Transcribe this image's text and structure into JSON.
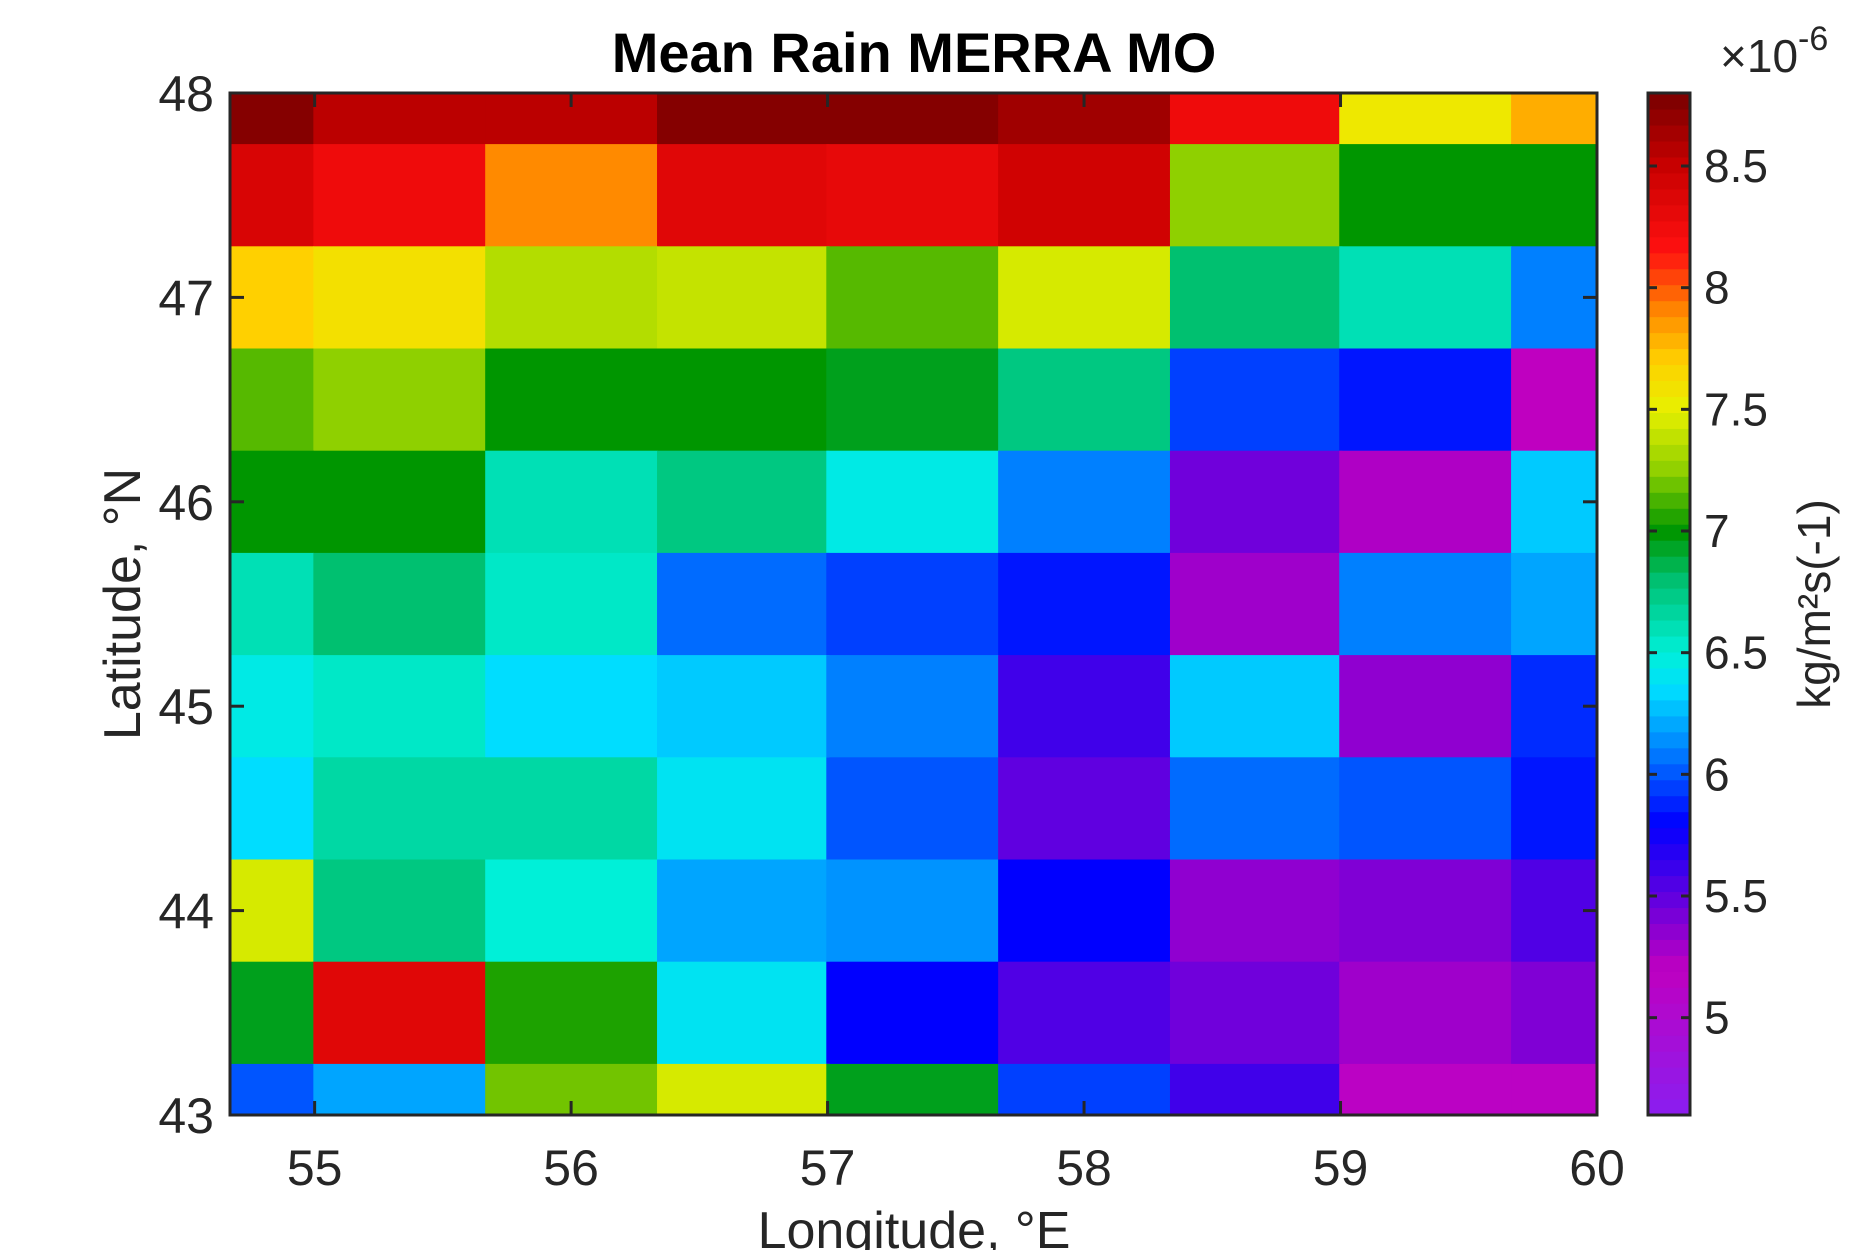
{
  "chart_data": {
    "type": "heatmap",
    "title": "Mean Rain MERRA MO",
    "xlabel": "Longitude, °E",
    "ylabel": "Latitude, °N",
    "x_ticks": [
      "55",
      "56",
      "57",
      "58",
      "59",
      "60"
    ],
    "y_ticks": [
      "43",
      "44",
      "45",
      "46",
      "47",
      "48"
    ],
    "xlim": [
      54.67,
      60
    ],
    "ylim": [
      43,
      48
    ],
    "x_centers": [
      54.83,
      55.33,
      56.0,
      56.67,
      57.33,
      58.0,
      58.67,
      59.33,
      59.83
    ],
    "x_widths": [
      0.33,
      0.67,
      0.67,
      0.67,
      0.67,
      0.67,
      0.67,
      0.67,
      0.33
    ],
    "y_centers": [
      47.875,
      47.5,
      47.0,
      46.5,
      46.0,
      45.5,
      45.0,
      44.5,
      44.0,
      43.5,
      43.125
    ],
    "y_heights": [
      0.25,
      0.5,
      0.5,
      0.5,
      0.5,
      0.5,
      0.5,
      0.5,
      0.5,
      0.5,
      0.25
    ],
    "values_note_unit": "1e-6 kg/m^2 s^-1",
    "values": [
      [
        8.75,
        8.55,
        8.55,
        8.75,
        8.75,
        8.65,
        8.25,
        7.55,
        7.8
      ],
      [
        8.4,
        8.25,
        7.9,
        8.35,
        8.3,
        8.45,
        7.25,
        7.0,
        7.0
      ],
      [
        7.7,
        7.6,
        7.35,
        7.4,
        7.15,
        7.45,
        6.8,
        6.6,
        6.1
      ],
      [
        7.15,
        7.25,
        7.0,
        7.0,
        6.95,
        6.75,
        5.95,
        5.85,
        5.2
      ],
      [
        7.0,
        7.0,
        6.6,
        6.75,
        6.45,
        6.1,
        5.45,
        5.25,
        6.3
      ],
      [
        6.6,
        6.8,
        6.55,
        6.05,
        5.95,
        5.85,
        5.3,
        6.1,
        6.2
      ],
      [
        6.45,
        6.55,
        6.35,
        6.3,
        6.1,
        5.6,
        6.3,
        5.35,
        5.9
      ],
      [
        6.35,
        6.65,
        6.65,
        6.4,
        6.0,
        5.5,
        6.05,
        6.0,
        5.85
      ],
      [
        7.45,
        6.75,
        6.5,
        6.2,
        6.15,
        5.8,
        5.35,
        5.4,
        5.55
      ],
      [
        6.95,
        8.35,
        7.05,
        6.4,
        5.8,
        5.55,
        5.45,
        5.3,
        5.4
      ],
      [
        6.0,
        6.2,
        7.2,
        7.45,
        6.95,
        5.95,
        5.6,
        5.15,
        5.15
      ]
    ],
    "clim": [
      4.6,
      8.8
    ],
    "colorbar": {
      "ticks": [
        "5",
        "5.5",
        "6",
        "6.5",
        "7",
        "7.5",
        "8",
        "8.5"
      ],
      "tick_values": [
        5,
        5.5,
        6,
        6.5,
        7,
        7.5,
        8,
        8.5
      ],
      "exponent_label": "×10",
      "exponent": "-6",
      "label": "kg/m²s(-1)"
    },
    "colormap": [
      {
        "v": 4.6,
        "c": "#8a1ef0"
      },
      {
        "v": 5.2,
        "c": "#bf00c0"
      },
      {
        "v": 5.5,
        "c": "#6000e0"
      },
      {
        "v": 5.8,
        "c": "#0000ff"
      },
      {
        "v": 6.1,
        "c": "#0080ff"
      },
      {
        "v": 6.35,
        "c": "#00ddff"
      },
      {
        "v": 6.5,
        "c": "#00f0d8"
      },
      {
        "v": 6.8,
        "c": "#00c070"
      },
      {
        "v": 7.0,
        "c": "#009600"
      },
      {
        "v": 7.25,
        "c": "#8fd000"
      },
      {
        "v": 7.5,
        "c": "#e8f000"
      },
      {
        "v": 7.7,
        "c": "#ffd000"
      },
      {
        "v": 7.9,
        "c": "#ff8a00"
      },
      {
        "v": 8.15,
        "c": "#ff1010"
      },
      {
        "v": 8.5,
        "c": "#c80000"
      },
      {
        "v": 8.8,
        "c": "#780000"
      }
    ]
  }
}
